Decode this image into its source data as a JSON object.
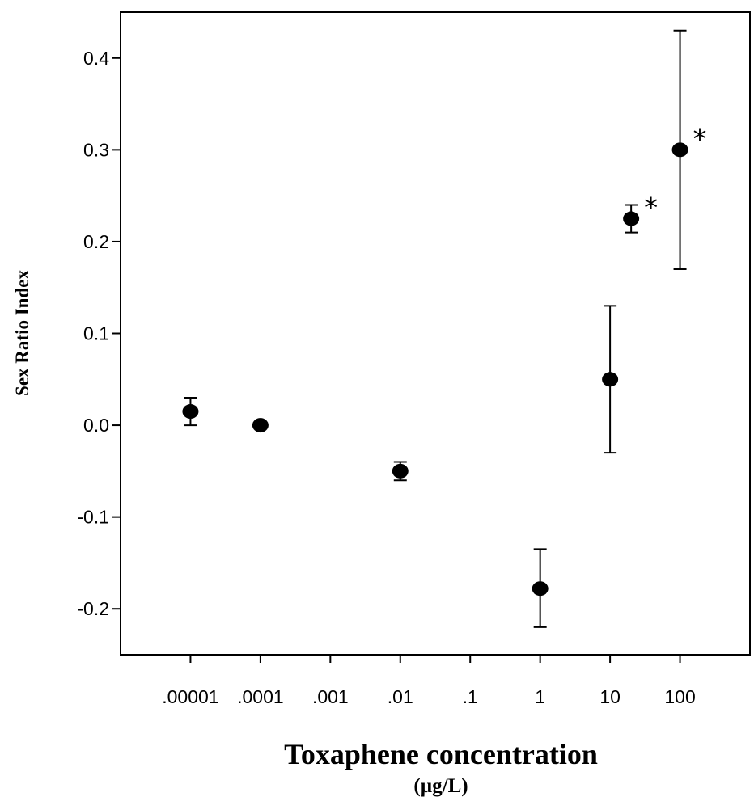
{
  "chart_data": {
    "type": "scatter",
    "xlabel": "Toxaphene concentration",
    "xunit": "(µg/L)",
    "ylabel": "Sex Ratio Index",
    "x_scale": "log",
    "x_ticks": [
      {
        "value": 1e-05,
        "label": ".00001"
      },
      {
        "value": 0.0001,
        "label": ".0001"
      },
      {
        "value": 0.001,
        "label": ".001"
      },
      {
        "value": 0.01,
        "label": ".01"
      },
      {
        "value": 0.1,
        "label": ".1"
      },
      {
        "value": 1,
        "label": "1"
      },
      {
        "value": 10,
        "label": "10"
      },
      {
        "value": 100,
        "label": "100"
      }
    ],
    "xlim": [
      1e-06,
      1000
    ],
    "ylim": [
      -0.25,
      0.45
    ],
    "y_ticks": [
      {
        "value": -0.2,
        "label": "-0.2"
      },
      {
        "value": -0.1,
        "label": "-0.1"
      },
      {
        "value": 0.0,
        "label": "0.0"
      },
      {
        "value": 0.1,
        "label": "0.1"
      },
      {
        "value": 0.2,
        "label": "0.2"
      },
      {
        "value": 0.3,
        "label": "0.3"
      },
      {
        "value": 0.4,
        "label": "0.4"
      }
    ],
    "grid": false,
    "legend": "none",
    "points": [
      {
        "x": 1e-05,
        "y": 0.015,
        "err_low": 0.0,
        "err_high": 0.03,
        "annotation": ""
      },
      {
        "x": 0.0001,
        "y": 0.0,
        "err_low": 0.0,
        "err_high": 0.0,
        "annotation": ""
      },
      {
        "x": 0.01,
        "y": -0.05,
        "err_low": -0.06,
        "err_high": -0.04,
        "annotation": ""
      },
      {
        "x": 1,
        "y": -0.178,
        "err_low": -0.22,
        "err_high": -0.135,
        "annotation": ""
      },
      {
        "x": 10,
        "y": 0.05,
        "err_low": -0.03,
        "err_high": 0.13,
        "annotation": ""
      },
      {
        "x": 20,
        "y": 0.225,
        "err_low": 0.21,
        "err_high": 0.24,
        "annotation": "*"
      },
      {
        "x": 100,
        "y": 0.3,
        "err_low": 0.17,
        "err_high": 0.43,
        "annotation": "*"
      }
    ],
    "marker_color": "#000000"
  }
}
